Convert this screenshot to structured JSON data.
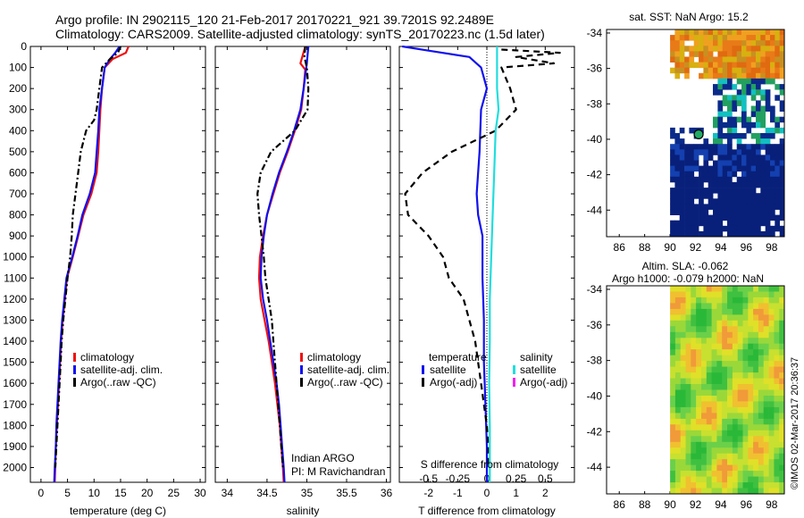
{
  "header": {
    "line1": "Argo profile: IN 2902115_120 21-Feb-2017 20170221_921 39.7201S 92.2489E",
    "line2": "Climatology: CARS2009. Satellite-adjusted climatology: synTS_20170223.nc (1.5d later)"
  },
  "colors": {
    "climatology": "#ee1111",
    "satellite": "#1111ee",
    "argo": "#000000",
    "salinity_satellite": "#22dddd",
    "salinity_argo": "#ee22ee"
  },
  "chart_data": [
    {
      "type": "line",
      "id": "temperature",
      "xlabel": "temperature (deg C)",
      "ylabel": "",
      "xlim": [
        -2,
        31
      ],
      "ylim": [
        2070,
        0
      ],
      "xticks": [
        "0",
        "5",
        "10",
        "15",
        "20",
        "25",
        "30"
      ],
      "yticks": [
        "0",
        "100",
        "200",
        "300",
        "400",
        "500",
        "600",
        "700",
        "800",
        "900",
        "1000",
        "1100",
        "1200",
        "1300",
        "1400",
        "1500",
        "1600",
        "1700",
        "1800",
        "1900",
        "2000"
      ],
      "legend": [
        "climatology",
        "satellite-adj. clim.",
        "Argo(..raw -QC)"
      ],
      "series": [
        {
          "name": "climatology",
          "style": "solid",
          "points": [
            [
              16.5,
              0
            ],
            [
              16.0,
              30
            ],
            [
              13.5,
              60
            ],
            [
              12.0,
              100
            ],
            [
              11.5,
              200
            ],
            [
              11.2,
              300
            ],
            [
              11.0,
              400
            ],
            [
              10.8,
              500
            ],
            [
              10.5,
              600
            ],
            [
              9.5,
              700
            ],
            [
              8.0,
              800
            ],
            [
              7.0,
              900
            ],
            [
              6.0,
              1000
            ],
            [
              4.9,
              1100
            ],
            [
              4.5,
              1200
            ],
            [
              4.1,
              1300
            ],
            [
              3.8,
              1400
            ],
            [
              3.6,
              1500
            ],
            [
              3.4,
              1600
            ],
            [
              3.2,
              1700
            ],
            [
              3.0,
              1800
            ],
            [
              2.8,
              1900
            ],
            [
              2.7,
              2000
            ],
            [
              2.6,
              2070
            ]
          ]
        },
        {
          "name": "satellite-adj. clim.",
          "style": "solid",
          "points": [
            [
              14.8,
              0
            ],
            [
              14.0,
              30
            ],
            [
              13.0,
              60
            ],
            [
              12.0,
              100
            ],
            [
              11.5,
              200
            ],
            [
              11.0,
              300
            ],
            [
              10.8,
              400
            ],
            [
              10.5,
              500
            ],
            [
              10.2,
              600
            ],
            [
              9.2,
              700
            ],
            [
              7.8,
              800
            ],
            [
              6.9,
              900
            ],
            [
              5.9,
              1000
            ],
            [
              4.8,
              1100
            ],
            [
              4.4,
              1200
            ],
            [
              4.0,
              1300
            ],
            [
              3.7,
              1400
            ],
            [
              3.5,
              1500
            ],
            [
              3.3,
              1600
            ],
            [
              3.1,
              1700
            ],
            [
              2.9,
              1800
            ],
            [
              2.8,
              1900
            ],
            [
              2.6,
              2000
            ],
            [
              2.5,
              2070
            ]
          ]
        },
        {
          "name": "Argo(..raw -QC)",
          "style": "dashdot",
          "points": [
            [
              15.0,
              0
            ],
            [
              14.5,
              30
            ],
            [
              13.0,
              60
            ],
            [
              11.5,
              100
            ],
            [
              11.0,
              200
            ],
            [
              10.5,
              300
            ],
            [
              10.0,
              350
            ],
            [
              8.5,
              400
            ],
            [
              7.5,
              500
            ],
            [
              7.0,
              600
            ],
            [
              6.5,
              700
            ],
            [
              6.0,
              800
            ],
            [
              5.8,
              900
            ],
            [
              5.5,
              1000
            ],
            [
              5.0,
              1100
            ],
            [
              4.6,
              1200
            ],
            [
              4.2,
              1300
            ],
            [
              3.9,
              1400
            ],
            [
              3.7,
              1500
            ],
            [
              3.5,
              1600
            ],
            [
              3.3,
              1700
            ],
            [
              3.1,
              1800
            ],
            [
              2.9,
              1900
            ],
            [
              2.7,
              2000
            ]
          ]
        }
      ]
    },
    {
      "type": "line",
      "id": "salinity",
      "xlabel": "salinity",
      "ylabel": "",
      "xlim": [
        33.85,
        36.05
      ],
      "ylim": [
        2070,
        0
      ],
      "xticks": [
        "34",
        "34.5",
        "35",
        "35.5",
        "36"
      ],
      "legend": [
        "climatology",
        "satellite-adj. clim.",
        "Argo(..raw -QC)"
      ],
      "annotation": [
        "Indian ARGO",
        "PI: M Ravichandran"
      ],
      "series": [
        {
          "name": "climatology",
          "style": "solid",
          "points": [
            [
              34.98,
              0
            ],
            [
              34.95,
              40
            ],
            [
              34.92,
              80
            ],
            [
              34.98,
              110
            ],
            [
              34.96,
              200
            ],
            [
              34.93,
              300
            ],
            [
              34.85,
              400
            ],
            [
              34.76,
              500
            ],
            [
              34.66,
              600
            ],
            [
              34.58,
              700
            ],
            [
              34.5,
              800
            ],
            [
              34.45,
              900
            ],
            [
              34.41,
              1000
            ],
            [
              34.4,
              1100
            ],
            [
              34.42,
              1200
            ],
            [
              34.47,
              1300
            ],
            [
              34.52,
              1400
            ],
            [
              34.56,
              1500
            ],
            [
              34.6,
              1600
            ],
            [
              34.63,
              1700
            ],
            [
              34.66,
              1800
            ],
            [
              34.68,
              1900
            ],
            [
              34.7,
              2000
            ],
            [
              34.71,
              2070
            ]
          ]
        },
        {
          "name": "satellite-adj. clim.",
          "style": "solid",
          "points": [
            [
              35.02,
              0
            ],
            [
              35.01,
              40
            ],
            [
              35.0,
              80
            ],
            [
              34.99,
              110
            ],
            [
              34.96,
              200
            ],
            [
              34.92,
              300
            ],
            [
              34.84,
              400
            ],
            [
              34.75,
              500
            ],
            [
              34.65,
              600
            ],
            [
              34.57,
              700
            ],
            [
              34.5,
              800
            ],
            [
              34.46,
              900
            ],
            [
              34.43,
              1000
            ],
            [
              34.42,
              1100
            ],
            [
              34.45,
              1200
            ],
            [
              34.5,
              1300
            ],
            [
              34.54,
              1400
            ],
            [
              34.58,
              1500
            ],
            [
              34.62,
              1600
            ],
            [
              34.65,
              1700
            ],
            [
              34.67,
              1800
            ],
            [
              34.69,
              1900
            ],
            [
              34.71,
              2000
            ],
            [
              34.72,
              2070
            ]
          ]
        },
        {
          "name": "Argo(..raw -QC)",
          "style": "dashdot",
          "points": [
            [
              34.98,
              0
            ],
            [
              34.97,
              50
            ],
            [
              35.0,
              100
            ],
            [
              35.02,
              200
            ],
            [
              35.01,
              300
            ],
            [
              34.85,
              400
            ],
            [
              34.55,
              500
            ],
            [
              34.42,
              600
            ],
            [
              34.38,
              700
            ],
            [
              34.4,
              800
            ],
            [
              34.43,
              900
            ],
            [
              34.46,
              1000
            ],
            [
              34.48,
              1100
            ],
            [
              34.52,
              1200
            ],
            [
              34.56,
              1300
            ],
            [
              34.58,
              1400
            ],
            [
              34.6,
              1500
            ],
            [
              34.62,
              1600
            ],
            [
              34.64,
              1700
            ],
            [
              34.66,
              1800
            ],
            [
              34.68,
              1900
            ],
            [
              34.7,
              2000
            ]
          ]
        }
      ]
    },
    {
      "type": "line",
      "id": "difference",
      "xlabel": "T difference from climatology",
      "xlabel_top": "S difference from climatology",
      "xlim": [
        -3.0,
        3.0
      ],
      "ylim": [
        2070,
        0
      ],
      "xticks": [
        "-2",
        "-1",
        "0",
        "1",
        "2"
      ],
      "xticks_top": [
        "-0.5",
        "-0.25",
        "0",
        "0.25",
        "0.5"
      ],
      "legend_temperature": {
        "title": "temperature",
        "items": [
          "satellite",
          "Argo(-adj)"
        ]
      },
      "legend_salinity": {
        "title": "salinity",
        "items": [
          "satellite",
          "Argo(-adj)"
        ]
      },
      "series": [
        {
          "name": "temperature satellite",
          "style": "solid",
          "points": [
            [
              -2.9,
              0
            ],
            [
              -2.0,
              20
            ],
            [
              -0.6,
              50
            ],
            [
              -0.2,
              100
            ],
            [
              0.0,
              200
            ],
            [
              -0.2,
              300
            ],
            [
              -0.25,
              500
            ],
            [
              -0.35,
              700
            ],
            [
              -0.3,
              800
            ],
            [
              -0.15,
              900
            ],
            [
              -0.15,
              1100
            ],
            [
              -0.1,
              1300
            ],
            [
              -0.1,
              1500
            ],
            [
              -0.05,
              1700
            ],
            [
              0.0,
              1900
            ],
            [
              0.0,
              2070
            ]
          ]
        },
        {
          "name": "temperature Argo(-adj)",
          "style": "dashed",
          "points": [
            [
              0.5,
              15
            ],
            [
              2.5,
              30
            ],
            [
              1.0,
              50
            ],
            [
              2.3,
              80
            ],
            [
              0.5,
              100
            ],
            [
              0.8,
              200
            ],
            [
              1.0,
              300
            ],
            [
              0.3,
              400
            ],
            [
              -1.2,
              500
            ],
            [
              -2.2,
              600
            ],
            [
              -2.8,
              700
            ],
            [
              -2.7,
              800
            ],
            [
              -2.0,
              900
            ],
            [
              -1.5,
              1000
            ],
            [
              -1.3,
              1100
            ],
            [
              -0.8,
              1200
            ],
            [
              -0.6,
              1300
            ],
            [
              -0.4,
              1400
            ],
            [
              -0.3,
              1500
            ],
            [
              -0.2,
              1600
            ],
            [
              -0.1,
              1700
            ],
            [
              0.0,
              1800
            ],
            [
              0.05,
              1900
            ],
            [
              0.05,
              2000
            ]
          ]
        },
        {
          "name": "salinity satellite",
          "style": "solid",
          "points": [
            [
              0.35,
              0
            ],
            [
              0.35,
              200
            ],
            [
              0.4,
              300
            ],
            [
              0.3,
              400
            ],
            [
              0.25,
              600
            ],
            [
              0.2,
              800
            ],
            [
              0.15,
              1000
            ],
            [
              0.1,
              1200
            ],
            [
              0.1,
              1400
            ],
            [
              0.08,
              1600
            ],
            [
              0.1,
              1800
            ],
            [
              0.1,
              2070
            ]
          ]
        }
      ]
    },
    {
      "type": "heatmap",
      "id": "sst_map",
      "title": "sat. SST: NaN Argo: 15.2",
      "xticks": [
        "86",
        "88",
        "90",
        "92",
        "94",
        "96",
        "98"
      ],
      "yticks": [
        "-34",
        "-36",
        "-38",
        "-40",
        "-42",
        "-44"
      ],
      "xlim": [
        85,
        99
      ],
      "ylim": [
        -45.5,
        -33.8
      ],
      "float_position": [
        92.25,
        -39.72
      ]
    },
    {
      "type": "heatmap",
      "id": "sla_map",
      "title_line1": "Altim. SLA: -0.062",
      "title_line2": "Argo h1000: -0.079 h2000: NaN",
      "xticks": [
        "86",
        "88",
        "90",
        "92",
        "94",
        "96",
        "98"
      ],
      "yticks": [
        "-34",
        "-36",
        "-38",
        "-40",
        "-42",
        "-44"
      ],
      "xlim": [
        85,
        99
      ],
      "ylim": [
        -45.5,
        -33.8
      ]
    }
  ],
  "stamp": "©IMOS 02-Mar-2017 20:36:37"
}
